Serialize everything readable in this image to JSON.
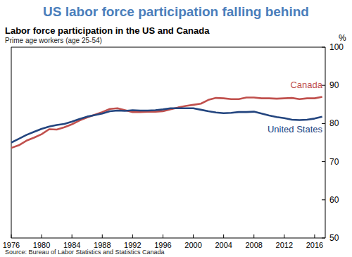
{
  "chart_data": {
    "type": "line",
    "title": "US labor force participation falling behind",
    "subtitle": "Labor force participation in the US and Canada",
    "annotations": [
      "Prime age workers (age 25-54)"
    ],
    "ylabel": "%",
    "source": "Source: Bureau of Labor Statistics and Statistics Canada",
    "x": [
      1976,
      1977,
      1978,
      1979,
      1980,
      1981,
      1982,
      1983,
      1984,
      1985,
      1986,
      1987,
      1988,
      1989,
      1990,
      1991,
      1992,
      1993,
      1994,
      1995,
      1996,
      1997,
      1998,
      1999,
      2000,
      2001,
      2002,
      2003,
      2004,
      2005,
      2006,
      2007,
      2008,
      2009,
      2010,
      2011,
      2012,
      2013,
      2014,
      2015,
      2016,
      2017
    ],
    "series": [
      {
        "name": "United States",
        "color": "#23457f",
        "values": [
          75.0,
          76.0,
          77.0,
          77.8,
          78.6,
          79.2,
          79.6,
          79.9,
          80.5,
          81.2,
          81.8,
          82.2,
          82.6,
          83.2,
          83.4,
          83.3,
          83.5,
          83.4,
          83.4,
          83.5,
          83.7,
          84.0,
          84.0,
          84.0,
          84.0,
          83.6,
          83.2,
          82.9,
          82.7,
          82.8,
          83.0,
          83.0,
          83.1,
          82.6,
          82.1,
          81.7,
          81.4,
          81.0,
          80.9,
          81.0,
          81.3,
          81.8
        ]
      },
      {
        "name": "Canada",
        "color": "#c0504d",
        "values": [
          73.6,
          74.3,
          75.5,
          76.3,
          77.2,
          78.5,
          78.4,
          79.0,
          79.8,
          80.8,
          81.6,
          82.3,
          83.0,
          83.8,
          84.0,
          83.5,
          83.0,
          83.0,
          83.1,
          83.1,
          83.2,
          83.7,
          84.2,
          84.6,
          84.9,
          85.2,
          86.2,
          86.7,
          86.6,
          86.4,
          86.4,
          86.8,
          86.8,
          86.6,
          86.6,
          86.5,
          86.6,
          86.7,
          86.4,
          86.6,
          86.6,
          87.0
        ]
      }
    ],
    "xlim": [
      1976,
      2017.4
    ],
    "xticks": [
      1976,
      1980,
      1984,
      1988,
      1992,
      1996,
      2000,
      2004,
      2008,
      2012,
      2016
    ],
    "ylim": [
      50,
      100
    ],
    "yticks": [
      50,
      60,
      70,
      80,
      90,
      100
    ],
    "grid": false
  }
}
